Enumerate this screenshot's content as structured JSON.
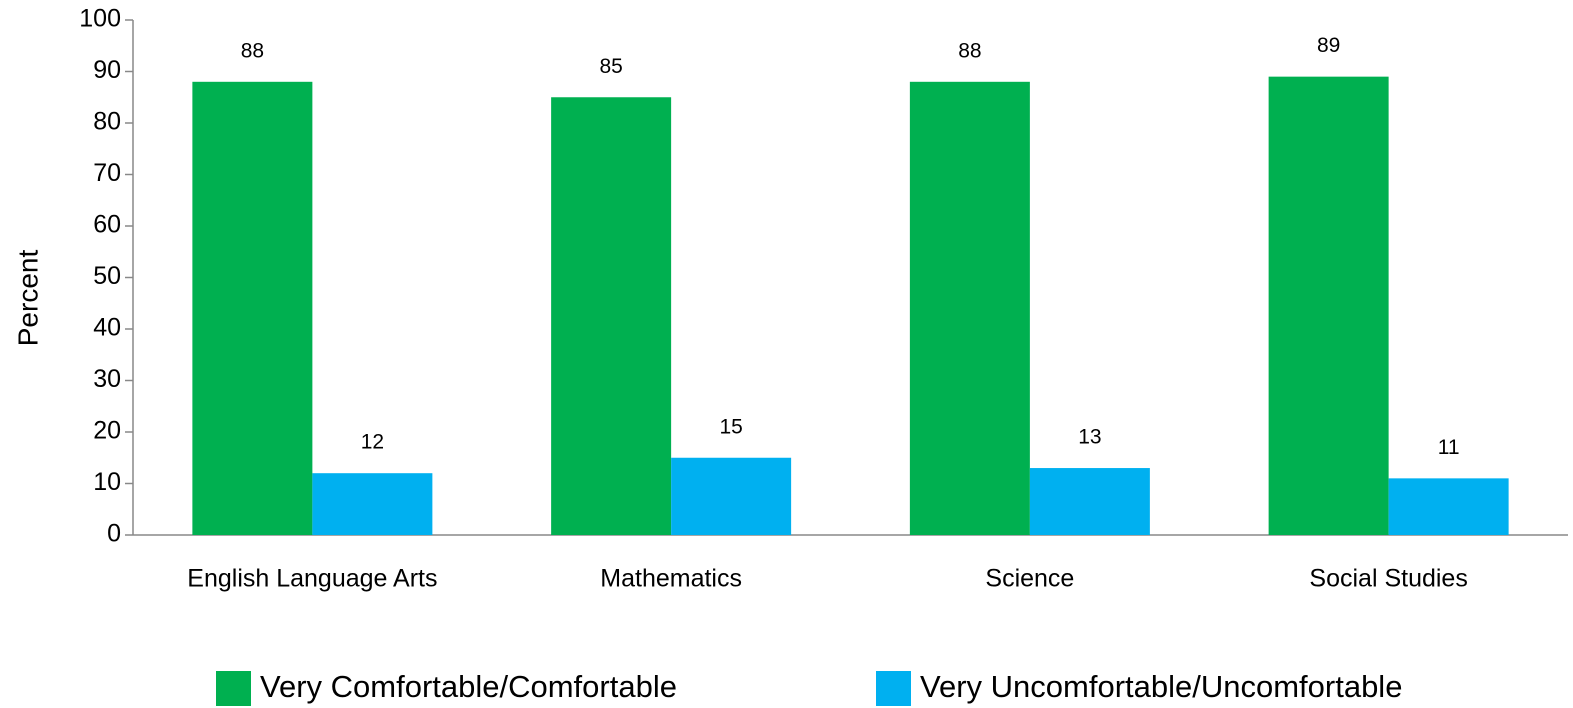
{
  "chart_data": {
    "type": "bar",
    "categories": [
      "English Language Arts",
      "Mathematics",
      "Science",
      "Social Studies"
    ],
    "series": [
      {
        "name": "Very Comfortable/Comfortable",
        "color": "#00b050",
        "values": [
          88,
          85,
          88,
          89
        ]
      },
      {
        "name": "Very Uncomfortable/Uncomfortable",
        "color": "#00b0f0",
        "values": [
          12,
          15,
          13,
          11
        ]
      }
    ],
    "y_label": "Percent",
    "ylim": [
      0,
      100
    ],
    "yticks": [
      0,
      10,
      20,
      30,
      40,
      50,
      60,
      70,
      80,
      90,
      100
    ],
    "grid": false,
    "legend": "bottom"
  }
}
